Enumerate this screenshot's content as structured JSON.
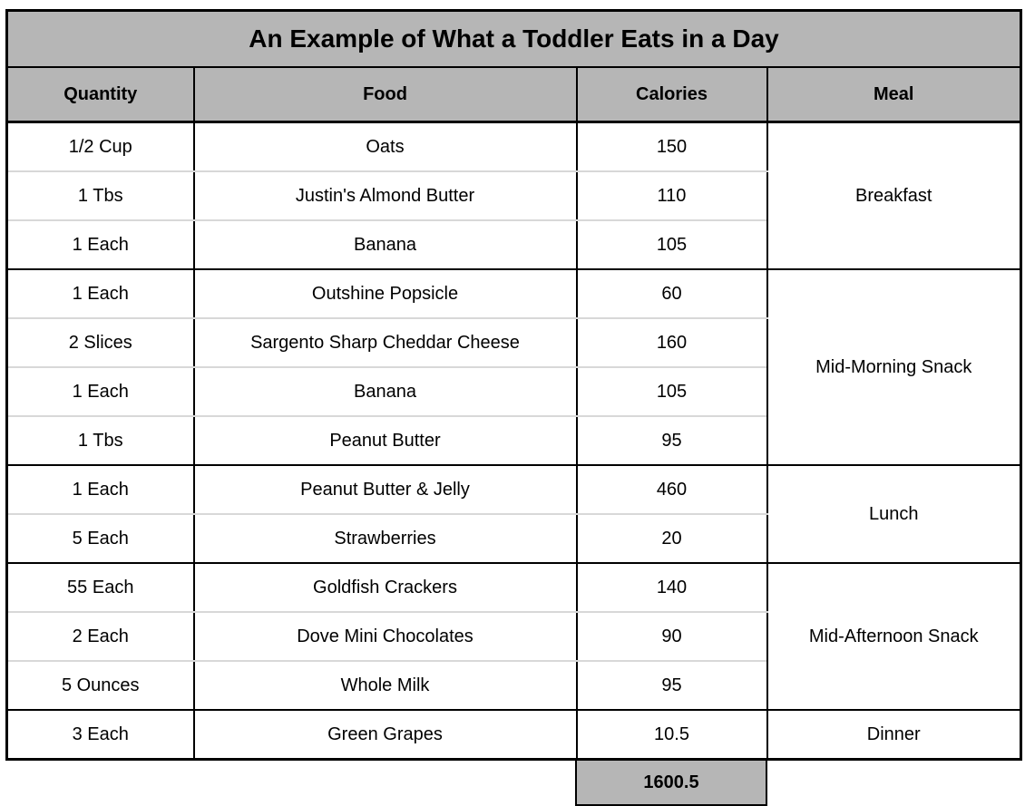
{
  "table": {
    "title": "An Example of What a Toddler Eats in a Day",
    "columns": {
      "quantity": "Quantity",
      "food": "Food",
      "calories": "Calories",
      "meal": "Meal"
    },
    "rows": [
      {
        "quantity": "1/2 Cup",
        "food": "Oats",
        "calories": "150"
      },
      {
        "quantity": "1 Tbs",
        "food": "Justin's Almond Butter",
        "calories": "110"
      },
      {
        "quantity": "1 Each",
        "food": "Banana",
        "calories": "105"
      },
      {
        "quantity": "1 Each",
        "food": "Outshine Popsicle",
        "calories": "60"
      },
      {
        "quantity": "2 Slices",
        "food": "Sargento Sharp Cheddar Cheese",
        "calories": "160"
      },
      {
        "quantity": "1 Each",
        "food": "Banana",
        "calories": "105"
      },
      {
        "quantity": "1 Tbs",
        "food": "Peanut Butter",
        "calories": "95"
      },
      {
        "quantity": "1 Each",
        "food": "Peanut Butter & Jelly",
        "calories": "460"
      },
      {
        "quantity": "5 Each",
        "food": "Strawberries",
        "calories": "20"
      },
      {
        "quantity": "55 Each",
        "food": "Goldfish Crackers",
        "calories": "140"
      },
      {
        "quantity": "2 Each",
        "food": "Dove Mini Chocolates",
        "calories": "90"
      },
      {
        "quantity": "5 Ounces",
        "food": "Whole Milk",
        "calories": "95"
      },
      {
        "quantity": "3 Each",
        "food": "Green Grapes",
        "calories": "10.5"
      }
    ],
    "meal_groups": [
      {
        "label": "Breakfast",
        "row_count": 3
      },
      {
        "label": "Mid-Morning Snack",
        "row_count": 4
      },
      {
        "label": "Lunch",
        "row_count": 2
      },
      {
        "label": "Mid-Afternoon Snack",
        "row_count": 3
      },
      {
        "label": "Dinner",
        "row_count": 1
      }
    ],
    "total_calories": "1600.5"
  },
  "colors": {
    "header_fill": "#b6b6b6",
    "total_fill": "#b6b6b6",
    "grid_line": "#000000",
    "row_separator": "#d8d8d8"
  }
}
